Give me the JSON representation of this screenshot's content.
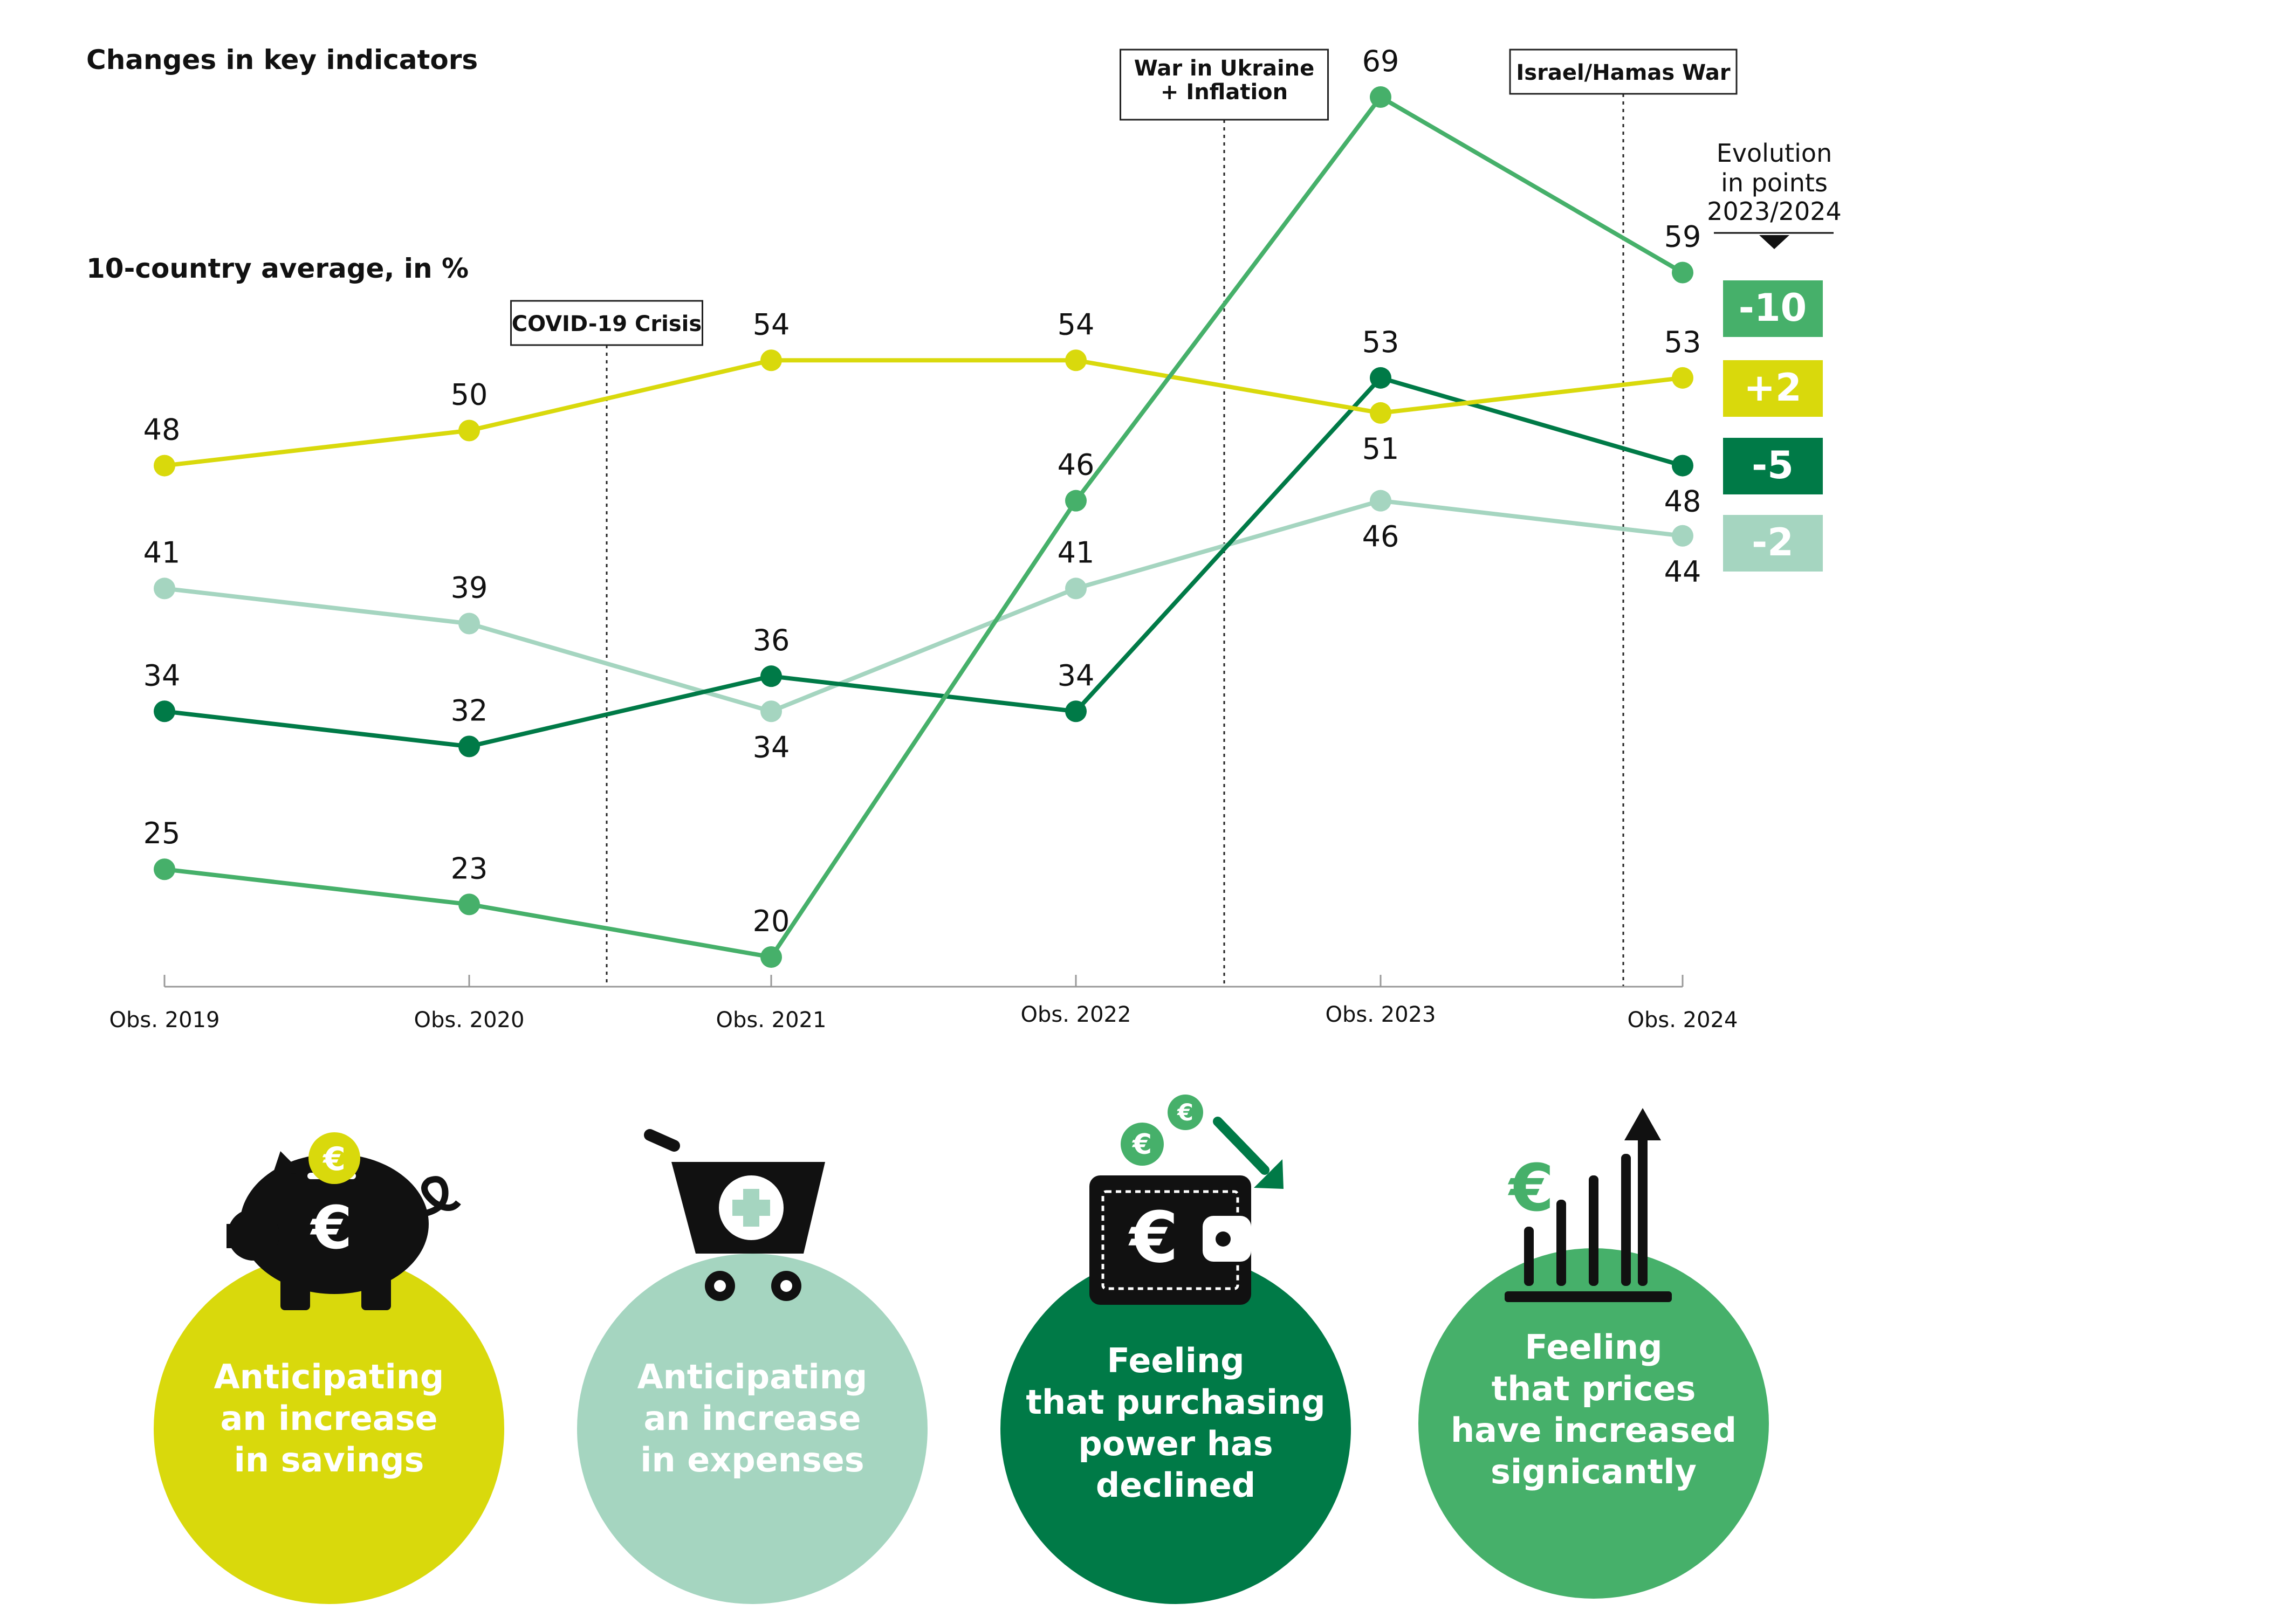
{
  "title": "Changes in key indicators",
  "subtitle": "10-country average, in %",
  "evolution_header": [
    "Evolution",
    "in points",
    "2023/2024"
  ],
  "events": [
    {
      "label_lines": [
        "COVID-19 Crisis"
      ]
    },
    {
      "label_lines": [
        "War in Ukraine",
        "+ Inflation"
      ]
    },
    {
      "label_lines": [
        "Israel/Hamas War"
      ]
    }
  ],
  "colors": {
    "savings": "#d9d90c",
    "expenses": "#a5d5c0",
    "purchasing": "#007a47",
    "prices": "#46b06a",
    "axis": "#999999",
    "text": "#111111"
  },
  "chart_data": {
    "type": "line",
    "categories": [
      "Obs. 2019",
      "Obs. 2020",
      "Obs. 2021",
      "Obs. 2022",
      "Obs. 2023",
      "Obs. 2024"
    ],
    "ylabel": "10-country average, in %",
    "ylim": [
      20,
      69
    ],
    "grid": false,
    "event_positions": [
      "between Obs. 2020 and Obs. 2021",
      "between Obs. 2022 and Obs. 2023",
      "between Obs. 2023 and Obs. 2024"
    ],
    "series": [
      {
        "key": "savings",
        "name": "Anticipating an increase in savings",
        "values": [
          48,
          50,
          54,
          54,
          51,
          53
        ],
        "evolution": "+2"
      },
      {
        "key": "expenses",
        "name": "Anticipating an increase in expenses",
        "values": [
          41,
          39,
          34,
          41,
          46,
          44
        ],
        "evolution": "-2"
      },
      {
        "key": "purchasing",
        "name": "Feeling that purchasing power has declined",
        "values": [
          34,
          32,
          36,
          34,
          53,
          48
        ],
        "evolution": "-5"
      },
      {
        "key": "prices",
        "name": "Feeling that prices have increased signicantly",
        "values": [
          25,
          23,
          20,
          46,
          69,
          59
        ],
        "evolution": "-10"
      }
    ]
  },
  "legend_circles": [
    {
      "key": "savings",
      "lines": [
        "Anticipating",
        "an increase",
        "in savings"
      ],
      "icon": "piggy-bank-icon",
      "coin_symbol": "€"
    },
    {
      "key": "expenses",
      "lines": [
        "Anticipating",
        "an increase",
        "in expenses"
      ],
      "icon": "shopping-cart-icon"
    },
    {
      "key": "purchasing",
      "lines": [
        "Feeling",
        "that purchasing",
        "power has",
        "declined"
      ],
      "icon": "wallet-icon",
      "coin_symbol": "€"
    },
    {
      "key": "prices",
      "lines": [
        "Feeling",
        "that prices",
        "have increased",
        "signicantly"
      ],
      "icon": "rising-bars-icon",
      "coin_symbol": "€"
    }
  ]
}
